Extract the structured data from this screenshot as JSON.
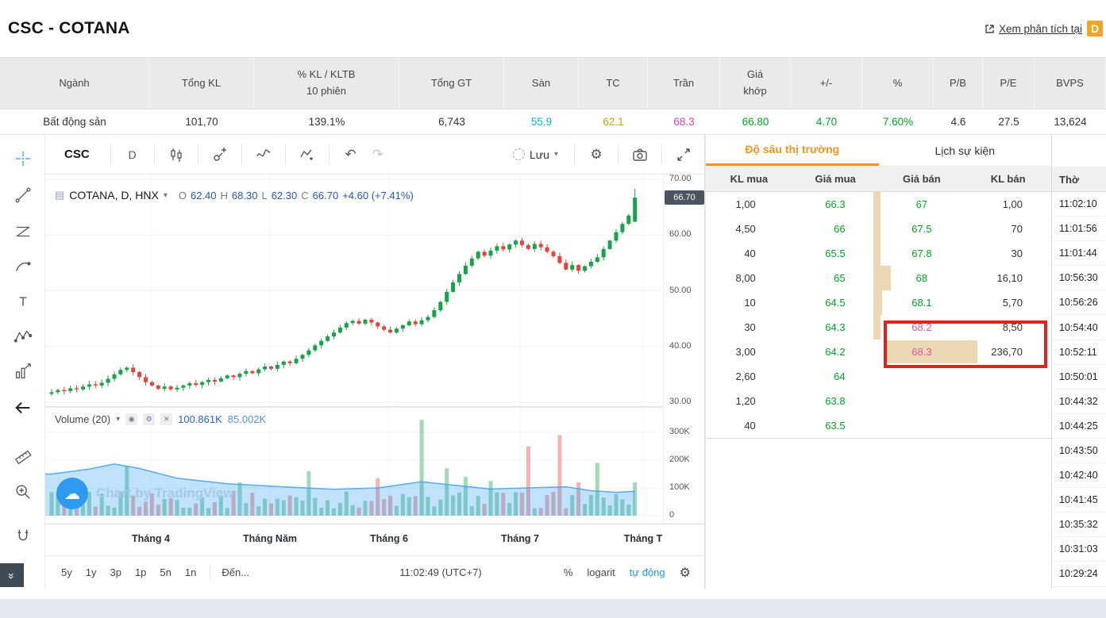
{
  "header": {
    "title": "CSC - COTANA",
    "analysis_link_label": "Xem phân tích tại",
    "logo_letter": "D"
  },
  "summary": {
    "headers": [
      "Ngành",
      "Tổng KL",
      "% KL / KLTB\n10 phiên",
      "Tổng GT",
      "Sàn",
      "TC",
      "Trần",
      "Giá\nkhớp",
      "+/-",
      "%",
      "P/B",
      "P/E",
      "BVPS"
    ],
    "values": [
      "Bất động sản",
      "101,70",
      "139.1%",
      "6,743",
      "55.9",
      "62.1",
      "68.3",
      "66.80",
      "4.70",
      "7.60%",
      "4.6",
      "27.5",
      "13,624"
    ],
    "value_colors": [
      "#333333",
      "#333333",
      "#333333",
      "#333333",
      "#00b6d4",
      "#c9a200",
      "#cc44cc",
      "#00a524",
      "#00a524",
      "#00a524",
      "#333333",
      "#333333",
      "#333333"
    ]
  },
  "chart_toolbar": {
    "symbol": "CSC",
    "interval": "D",
    "save_label": "Lưu"
  },
  "chart": {
    "legend_title": "COTANA, D, HNX",
    "ohlc": {
      "o_label": "O",
      "o": "62.40",
      "h_label": "H",
      "h": "68.30",
      "l_label": "L",
      "l": "62.30",
      "c_label": "C",
      "c": "66.70",
      "change": "+4.60 (+7.41%)"
    },
    "price_tag": "66.70",
    "y_ticks": [
      "70.00",
      "60.00",
      "50.00",
      "40.00",
      "30.00"
    ],
    "volume_ticks": [
      "300K",
      "200K",
      "100K",
      "0"
    ],
    "x_ticks": [
      "Tháng 4",
      "Tháng Năm",
      "Tháng 6",
      "Tháng 7",
      "Tháng T"
    ],
    "volume_legend": {
      "label": "Volume (20)",
      "ma1": "100.861K",
      "ma2": "85.002K"
    },
    "watermark": "Chart by TradingView",
    "bottom_bar": {
      "ranges": [
        "5y",
        "1y",
        "3p",
        "1p",
        "5n",
        "1n"
      ],
      "goto": "Đến...",
      "clock": "11:02:49 (UTC+7)",
      "percent": "%",
      "log": "logarit",
      "auto": "tự động"
    }
  },
  "chart_data": {
    "type": "candlestick",
    "symbol": "COTANA",
    "exchange": "HNX",
    "interval": "D",
    "last": {
      "open": 62.4,
      "high": 68.3,
      "low": 62.3,
      "close": 66.7,
      "change": "+4.60",
      "change_pct": "+7.41%"
    },
    "price_range": [
      30,
      70
    ],
    "volume_range_k": [
      0,
      300
    ],
    "first_open": 31.5,
    "closes": [
      31.8,
      32.2,
      32.0,
      32.5,
      32.3,
      32.8,
      33.2,
      33.0,
      33.5,
      34.2,
      35.0,
      35.8,
      36.2,
      35.4,
      34.5,
      33.6,
      33.0,
      32.4,
      32.8,
      32.3,
      32.6,
      33.0,
      33.4,
      33.1,
      33.6,
      34.0,
      33.7,
      34.3,
      34.8,
      34.5,
      35.1,
      35.6,
      35.2,
      35.9,
      36.4,
      36.0,
      36.7,
      37.3,
      37.0,
      37.8,
      38.5,
      39.3,
      40.2,
      41.0,
      41.8,
      42.5,
      43.4,
      44.2,
      44.6,
      44.1,
      44.8,
      44.3,
      43.6,
      43.0,
      42.5,
      43.2,
      43.8,
      44.5,
      44.0,
      44.7,
      45.3,
      46.5,
      48.0,
      49.8,
      51.5,
      53.0,
      54.5,
      55.8,
      57.0,
      56.3,
      57.2,
      58.0,
      57.4,
      58.3,
      59.0,
      58.2,
      57.5,
      58.4,
      57.8,
      57.0,
      56.2,
      55.0,
      53.8,
      54.6,
      53.6,
      54.4,
      55.2,
      56.0,
      57.5,
      59.0,
      60.5,
      62.0,
      63.5,
      66.7
    ],
    "volume_spikes_k": {
      "12": 180,
      "30": 120,
      "41": 160,
      "52": 135,
      "59": 345,
      "63": 170,
      "66": 140,
      "70": 125,
      "76": 250,
      "81": 290,
      "84": 120,
      "87": 190,
      "93": 120
    },
    "volume_ma_points_k": [
      [
        0,
        150
      ],
      [
        6,
        168
      ],
      [
        10,
        186
      ],
      [
        14,
        170
      ],
      [
        20,
        135
      ],
      [
        28,
        115
      ],
      [
        36,
        105
      ],
      [
        45,
        95
      ],
      [
        52,
        100
      ],
      [
        59,
        122
      ],
      [
        64,
        110
      ],
      [
        70,
        96
      ],
      [
        76,
        100
      ],
      [
        82,
        104
      ],
      [
        86,
        90
      ],
      [
        90,
        84
      ],
      [
        93,
        88
      ]
    ]
  },
  "depth": {
    "tabs": [
      {
        "label": "Độ sâu thị trường"
      },
      {
        "label": "Lịch sự kiện"
      }
    ],
    "columns": [
      "KL mua",
      "Giá mua",
      "Giá bán",
      "KL bán"
    ],
    "rows": [
      {
        "buy_vol": "1,00",
        "buy_price": "66.3",
        "sell_price": "67",
        "sell_vol": "1,00",
        "sell_color": "green",
        "depth_w": 9
      },
      {
        "buy_vol": "4,50",
        "buy_price": "66",
        "sell_price": "67.5",
        "sell_vol": "70",
        "sell_color": "green",
        "depth_w": 9
      },
      {
        "buy_vol": "40",
        "buy_price": "65.5",
        "sell_price": "67.8",
        "sell_vol": "30",
        "sell_color": "green",
        "depth_w": 9
      },
      {
        "buy_vol": "8,00",
        "buy_price": "65",
        "sell_price": "68",
        "sell_vol": "16,10",
        "sell_color": "green",
        "depth_w": 22
      },
      {
        "buy_vol": "10",
        "buy_price": "64.5",
        "sell_price": "68.1",
        "sell_vol": "5,70",
        "sell_color": "green",
        "depth_w": 11
      },
      {
        "buy_vol": "30",
        "buy_price": "64.3",
        "sell_price": "68.2",
        "sell_vol": "8,50",
        "sell_color": "pink",
        "depth_w": 9
      },
      {
        "buy_vol": "3,00",
        "buy_price": "64.2",
        "sell_price": "68.3",
        "sell_vol": "236,70",
        "sell_color": "pink",
        "depth_w": 0,
        "highlight": true
      },
      {
        "buy_vol": "2,60",
        "buy_price": "64",
        "sell_price": "",
        "sell_vol": "",
        "sell_color": "green",
        "depth_w": 0
      },
      {
        "buy_vol": "1,20",
        "buy_price": "63.8",
        "sell_price": "",
        "sell_vol": "",
        "sell_color": "green",
        "depth_w": 0
      },
      {
        "buy_vol": "40",
        "buy_price": "63.5",
        "sell_price": "",
        "sell_vol": "",
        "sell_color": "green",
        "depth_w": 0
      }
    ]
  },
  "time_panel": {
    "header": "Thờ",
    "times": [
      "11:02:10",
      "11:01:56",
      "11:01:44",
      "10:56:30",
      "10:56:26",
      "10:54:40",
      "10:52:11",
      "10:50:01",
      "10:44:32",
      "10:44:25",
      "10:43:50",
      "10:42:40",
      "10:41:45",
      "10:35:32",
      "10:31:03",
      "10:29:24"
    ]
  },
  "colors": {
    "up": "#18a34a",
    "down": "#e2453c",
    "buy_green": "#00a524",
    "ceiling_pink": "#e0559d",
    "tab_orange": "#f7941d",
    "depth_tan": "#ecd9b4",
    "annotation_red": "#e32118",
    "accent_blue": "#2a62c9"
  }
}
